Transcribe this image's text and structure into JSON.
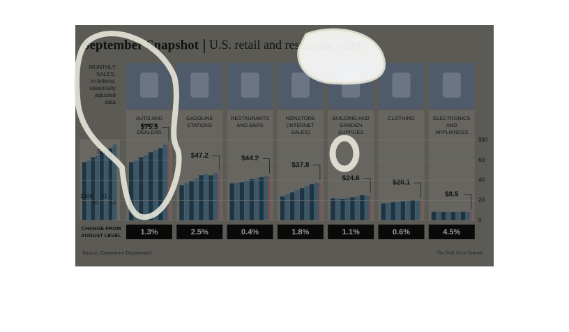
{
  "chart_data": {
    "type": "bar",
    "title": "September Snapshot",
    "subtitle": "U.S. retail and restaurant sales",
    "note": [
      "MONTHLY",
      "SALES,",
      "in billions;",
      "seasonally",
      "adjusted",
      "data"
    ],
    "key_labels": [
      "2009",
      "'10",
      "'11",
      "'12"
    ],
    "key_marker": "Sept.",
    "change_heading": [
      "CHANGE FROM",
      "AUGUST LEVEL"
    ],
    "source": "Source: Commerce Department",
    "credit": "The Wall Street Journal",
    "ylim": [
      0,
      80
    ],
    "yticks": [
      0,
      20,
      40,
      60,
      {
        "value": 80,
        "label": "$80"
      }
    ],
    "panels": [
      {
        "name": [
          "AUTO AND",
          "PARTS",
          "DEALERS"
        ],
        "values": [
          58,
          60,
          63,
          65,
          68,
          70,
          72,
          75.5
        ],
        "value_label": "$75.5",
        "change": 1.3,
        "change_label": "1.3%"
      },
      {
        "name": [
          "GASOLINE",
          "STATIONS"
        ],
        "values": [
          35,
          37,
          39,
          42,
          45,
          46,
          45,
          47.2
        ],
        "value_label": "$47.2",
        "change": 2.5,
        "change_label": "2.5%"
      },
      {
        "name": [
          "RESTAURANTS",
          "AND BARS"
        ],
        "values": [
          37,
          37.5,
          38,
          39.5,
          41,
          42,
          43,
          44.2
        ],
        "value_label": "$44.2",
        "change": 0.4,
        "change_label": "0.4%"
      },
      {
        "name": [
          "NONSTORE",
          "(INTERNET",
          "SALES)"
        ],
        "values": [
          24,
          26,
          28,
          30,
          32,
          34,
          36,
          37.8
        ],
        "value_label": "$37.8",
        "change": 1.8,
        "change_label": "1.8%"
      },
      {
        "name": [
          "BUILDING AND",
          "GARDEN",
          "SUPPLIES"
        ],
        "values": [
          22,
          22,
          21.5,
          22.5,
          23,
          24,
          25,
          24.6
        ],
        "value_label": "$24.6",
        "change": 1.1,
        "change_label": "1.1%"
      },
      {
        "name": [
          "CLOTHING"
        ],
        "values": [
          17,
          17.5,
          18,
          18.5,
          19,
          19.5,
          20,
          20.1
        ],
        "value_label": "$20.1",
        "change": 0.6,
        "change_label": "0.6%"
      },
      {
        "name": [
          "ELECTRONICS",
          "AND",
          "APPLIANCES"
        ],
        "values": [
          8.5,
          8.6,
          8.4,
          8.5,
          8.3,
          8.4,
          8.5,
          8.5
        ],
        "value_label": "$8.5",
        "change": 4.5,
        "change_label": "4.5%"
      }
    ]
  }
}
